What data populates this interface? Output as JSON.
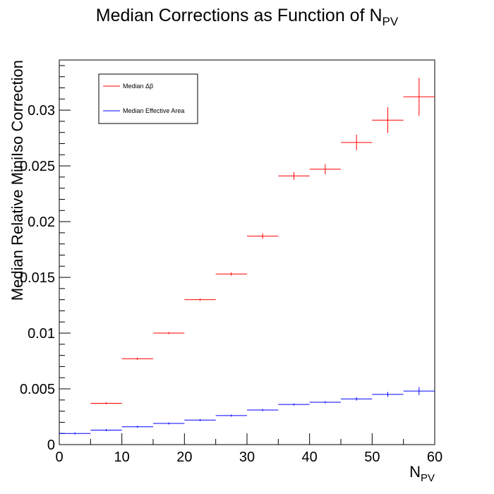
{
  "chart_data": {
    "type": "scatter",
    "title": "Median Corrections as Function of N",
    "title_sub": "PV",
    "xlabel": "N",
    "xlabel_sub": "PV",
    "ylabel": "Median Relative MiniIso Correction",
    "xlim": [
      0,
      60
    ],
    "ylim": [
      0,
      0.0345
    ],
    "x_ticks": [
      "0",
      "10",
      "20",
      "30",
      "40",
      "50",
      "60"
    ],
    "y_ticks": [
      "0",
      "0.005",
      "0.01",
      "0.015",
      "0.02",
      "0.025",
      "0.03"
    ],
    "legend_position": "top-left",
    "series": [
      {
        "name": "Median Δβ",
        "color": "#ff0000",
        "points": [
          {
            "x": 7.5,
            "y": 0.0037,
            "xerr": 2.5,
            "yerr": 5e-05
          },
          {
            "x": 12.5,
            "y": 0.0077,
            "xerr": 2.5,
            "yerr": 5e-05
          },
          {
            "x": 17.5,
            "y": 0.01,
            "xerr": 2.5,
            "yerr": 8e-05
          },
          {
            "x": 22.5,
            "y": 0.013,
            "xerr": 2.5,
            "yerr": 0.0001
          },
          {
            "x": 27.5,
            "y": 0.0153,
            "xerr": 2.5,
            "yerr": 0.00015
          },
          {
            "x": 32.5,
            "y": 0.0187,
            "xerr": 2.5,
            "yerr": 0.00025
          },
          {
            "x": 37.5,
            "y": 0.0241,
            "xerr": 2.5,
            "yerr": 0.00035
          },
          {
            "x": 42.5,
            "y": 0.0247,
            "xerr": 2.5,
            "yerr": 0.00045
          },
          {
            "x": 47.5,
            "y": 0.0271,
            "xerr": 2.5,
            "yerr": 0.0007
          },
          {
            "x": 52.5,
            "y": 0.0291,
            "xerr": 2.5,
            "yerr": 0.00115
          },
          {
            "x": 57.5,
            "y": 0.0312,
            "xerr": 2.5,
            "yerr": 0.0017
          }
        ]
      },
      {
        "name": "Median Effective Area",
        "color": "#0000ff",
        "points": [
          {
            "x": 2.5,
            "y": 0.001,
            "xerr": 2.5,
            "yerr": 2e-05
          },
          {
            "x": 7.5,
            "y": 0.0013,
            "xerr": 2.5,
            "yerr": 2e-05
          },
          {
            "x": 12.5,
            "y": 0.0016,
            "xerr": 2.5,
            "yerr": 2e-05
          },
          {
            "x": 17.5,
            "y": 0.0019,
            "xerr": 2.5,
            "yerr": 3e-05
          },
          {
            "x": 22.5,
            "y": 0.0022,
            "xerr": 2.5,
            "yerr": 4e-05
          },
          {
            "x": 27.5,
            "y": 0.0026,
            "xerr": 2.5,
            "yerr": 5e-05
          },
          {
            "x": 32.5,
            "y": 0.0031,
            "xerr": 2.5,
            "yerr": 6e-05
          },
          {
            "x": 37.5,
            "y": 0.0036,
            "xerr": 2.5,
            "yerr": 8e-05
          },
          {
            "x": 42.5,
            "y": 0.0038,
            "xerr": 2.5,
            "yerr": 0.0001
          },
          {
            "x": 47.5,
            "y": 0.0041,
            "xerr": 2.5,
            "yerr": 0.00015
          },
          {
            "x": 52.5,
            "y": 0.0045,
            "xerr": 2.5,
            "yerr": 0.00022
          },
          {
            "x": 57.5,
            "y": 0.0048,
            "xerr": 2.5,
            "yerr": 0.00035
          }
        ]
      }
    ]
  }
}
